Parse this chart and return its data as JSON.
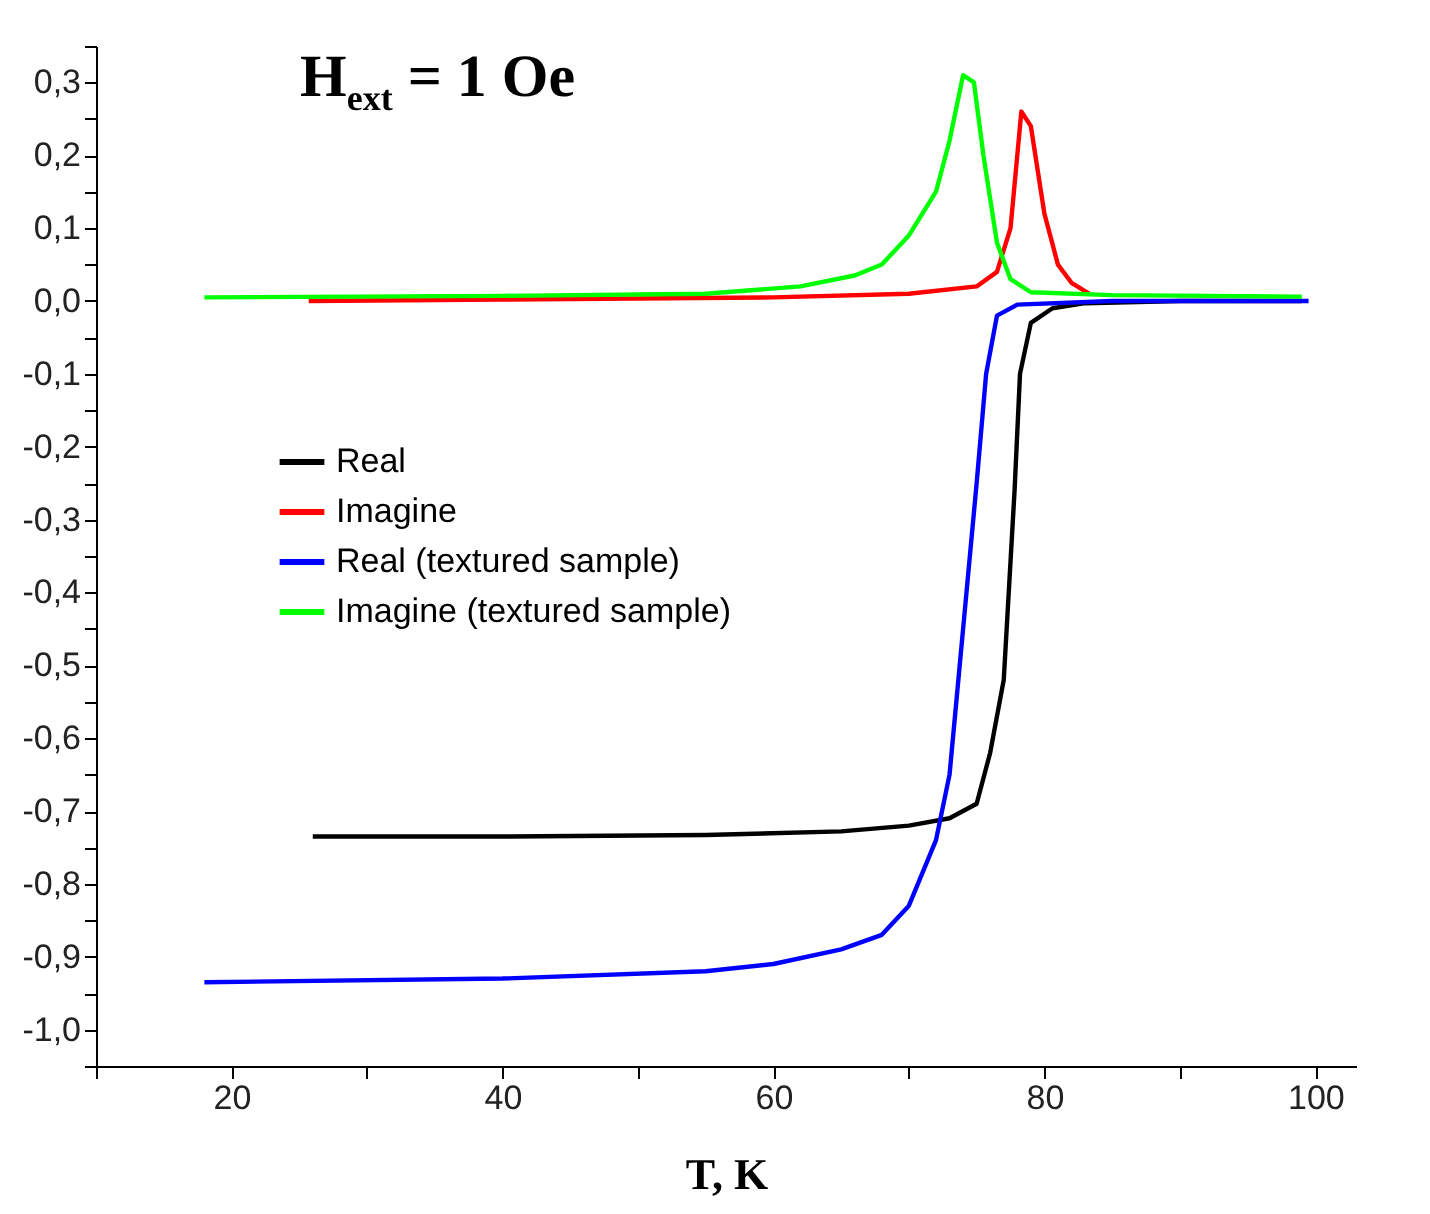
{
  "chart_data": {
    "type": "line",
    "xlabel": "T, K",
    "annotations": [
      "H$_{ext}$ = 1 Oe"
    ],
    "xlim": [
      10,
      103
    ],
    "xticks": [
      {
        "value": 10,
        "label": null
      },
      20,
      {
        "value": 30,
        "label": null
      },
      40,
      {
        "value": 50,
        "label": null
      },
      60,
      {
        "value": 70,
        "label": null
      },
      80,
      {
        "value": 90,
        "label": null
      },
      100
    ],
    "ylim": [
      -1.05,
      0.35
    ],
    "yticks": [
      {
        "value": -1.05,
        "label": null
      },
      {
        "value": -1.0,
        "label": "-1,0"
      },
      {
        "value": -0.95,
        "label": null
      },
      {
        "value": -0.9,
        "label": "-0,9"
      },
      {
        "value": -0.85,
        "label": null
      },
      {
        "value": -0.8,
        "label": "-0,8"
      },
      {
        "value": -0.75,
        "label": null
      },
      {
        "value": -0.7,
        "label": "-0,7"
      },
      {
        "value": -0.65,
        "label": null
      },
      {
        "value": -0.6,
        "label": "-0,6"
      },
      {
        "value": -0.55,
        "label": null
      },
      {
        "value": -0.5,
        "label": "-0,5"
      },
      {
        "value": -0.45,
        "label": null
      },
      {
        "value": -0.4,
        "label": "-0,4"
      },
      {
        "value": -0.35,
        "label": null
      },
      {
        "value": -0.3,
        "label": "-0,3"
      },
      {
        "value": -0.25,
        "label": null
      },
      {
        "value": -0.2,
        "label": "-0,2"
      },
      {
        "value": -0.15,
        "label": null
      },
      {
        "value": -0.1,
        "label": "-0,1"
      },
      {
        "value": -0.05,
        "label": null
      },
      {
        "value": 0.0,
        "label": "0,0"
      },
      {
        "value": 0.05,
        "label": null
      },
      {
        "value": 0.1,
        "label": "0,1"
      },
      {
        "value": 0.15,
        "label": null
      },
      {
        "value": 0.2,
        "label": "0,2"
      },
      {
        "value": 0.25,
        "label": null
      },
      {
        "value": 0.3,
        "label": "0,3"
      },
      {
        "value": 0.35,
        "label": null
      }
    ],
    "grid": false,
    "legend": "left",
    "marker": "none",
    "line_style": "solid",
    "series": [
      {
        "name": "Real",
        "color": "#000000",
        "x": [
          26,
          40,
          55,
          65,
          70,
          73,
          75,
          76,
          77,
          77.8,
          78.2,
          79,
          80.6,
          83,
          90,
          99
        ],
        "values": [
          -0.735,
          -0.735,
          -0.733,
          -0.728,
          -0.72,
          -0.71,
          -0.69,
          -0.62,
          -0.52,
          -0.26,
          -0.1,
          -0.03,
          -0.01,
          -0.003,
          0,
          0
        ]
      },
      {
        "name": "Imagine",
        "color": "#ff0000",
        "x": [
          25.7,
          40,
          60,
          70,
          75,
          76.5,
          77.5,
          78.3,
          79,
          80,
          81,
          82,
          83.3
        ],
        "values": [
          0,
          0.002,
          0.005,
          0.01,
          0.02,
          0.04,
          0.1,
          0.26,
          0.24,
          0.12,
          0.05,
          0.025,
          0.01
        ]
      },
      {
        "name": "Real (textured sample)",
        "color": "#0000ff",
        "x": [
          18,
          40,
          55,
          60,
          65,
          68,
          70,
          72,
          73,
          74,
          75,
          75.7,
          76.5,
          78,
          85,
          99.5
        ],
        "values": [
          -0.935,
          -0.93,
          -0.92,
          -0.91,
          -0.89,
          -0.87,
          -0.83,
          -0.74,
          -0.65,
          -0.45,
          -0.25,
          -0.1,
          -0.02,
          -0.005,
          0,
          0
        ]
      },
      {
        "name": "Imagine (textured sample)",
        "color": "#00ff00",
        "x": [
          18,
          40,
          55,
          62,
          66,
          68,
          70,
          72,
          73,
          74,
          74.8,
          75.5,
          76.5,
          77.5,
          79,
          85,
          99
        ],
        "values": [
          0.005,
          0.007,
          0.01,
          0.02,
          0.035,
          0.05,
          0.09,
          0.15,
          0.22,
          0.31,
          0.3,
          0.2,
          0.08,
          0.03,
          0.012,
          0.008,
          0.006
        ]
      }
    ]
  }
}
